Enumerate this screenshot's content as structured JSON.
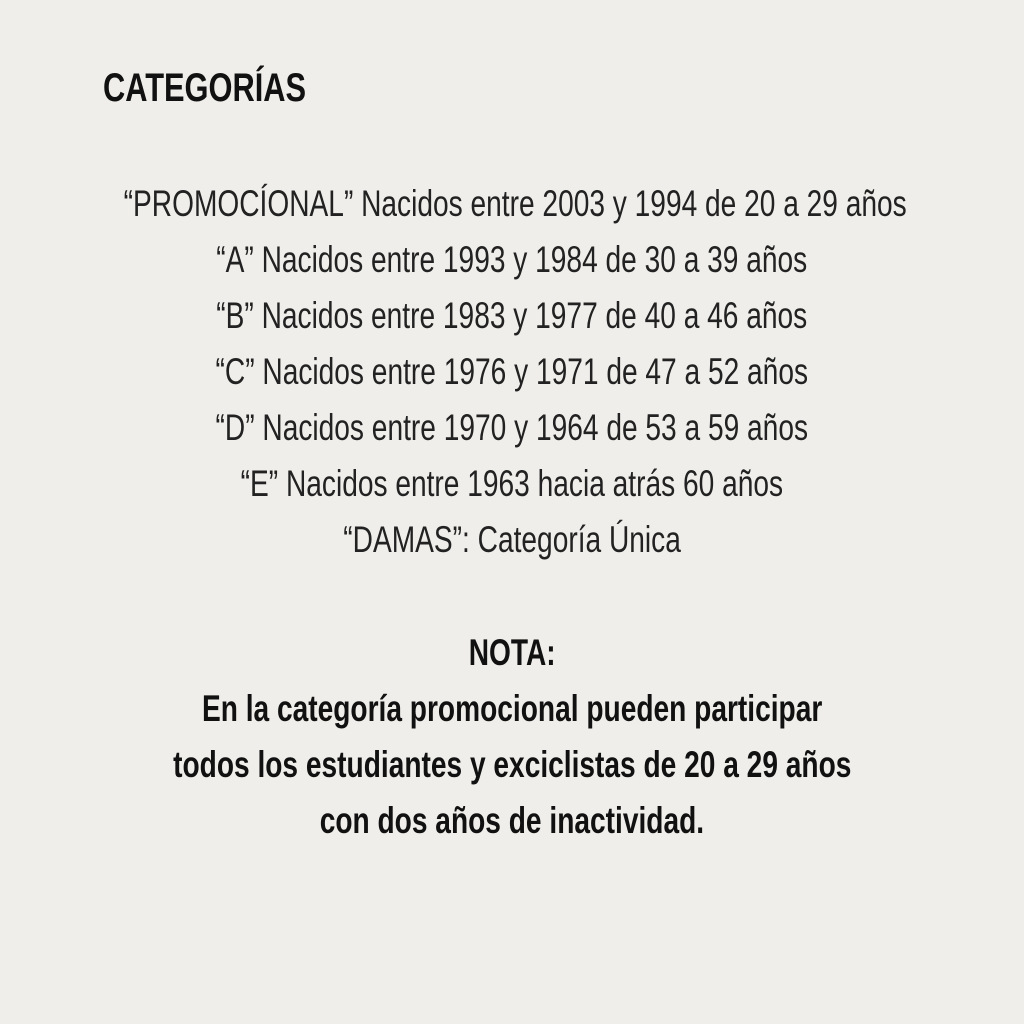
{
  "title": "CATEGORÍAS",
  "categories": [
    "“PROMOCÍONAL” Nacidos entre 2003 y 1994 de 20 a 29 años",
    "“A” Nacidos entre 1993 y 1984 de 30 a 39 años",
    "“B” Nacidos entre 1983 y 1977 de 40 a 46 años",
    "“C” Nacidos entre 1976 y 1971 de 47 a 52 años",
    "“D” Nacidos entre 1970 y 1964 de 53 a 59 años",
    "“E” Nacidos entre 1963 hacia atrás 60 años",
    "“DAMAS”: Categoría Única"
  ],
  "note": {
    "heading": "NOTA:",
    "lines": [
      "En la categoría promocional pueden participar",
      "todos los estudiantes y exciclistas de 20 a 29 años",
      "con dos años de inactividad."
    ]
  }
}
